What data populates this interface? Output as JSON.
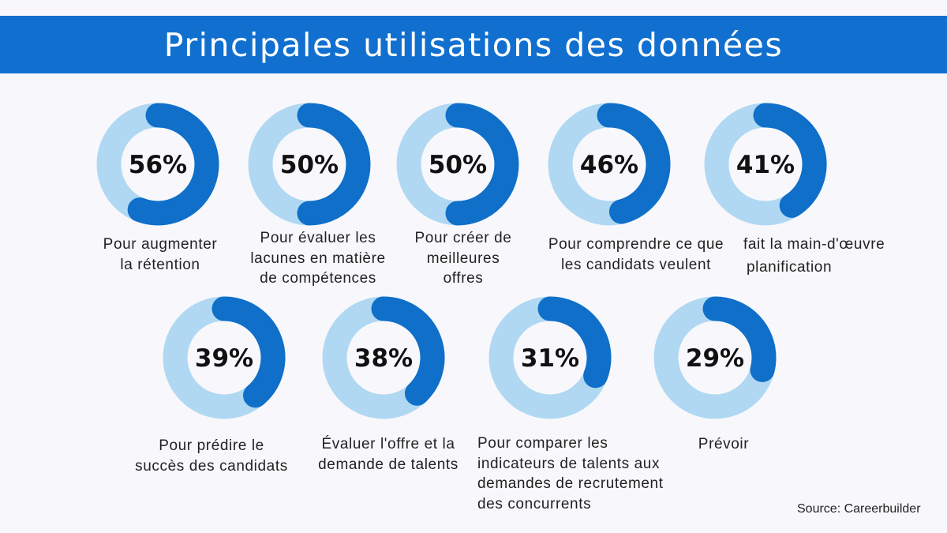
{
  "title": "Principales utilisations des données",
  "source": "Source: Careerbuilder",
  "colors": {
    "header": "#1170cf",
    "arc": "#0f6fc9",
    "track": "#b0d8f2"
  },
  "chart_data": {
    "type": "donut",
    "title": "Principales utilisations des données",
    "unit": "%",
    "items": [
      {
        "value": 56,
        "label_text": "56%",
        "lines": [
          "Pour augmenter",
          "la rétention"
        ]
      },
      {
        "value": 50,
        "label_text": "50%",
        "lines": [
          "Pour évaluer les",
          "lacunes en matière",
          "de compétences"
        ]
      },
      {
        "value": 50,
        "label_text": "50%",
        "lines": [
          "Pour créer de",
          "meilleures",
          "offres"
        ]
      },
      {
        "value": 46,
        "label_text": "46%",
        "lines": [
          "Pour comprendre ce que",
          "les candidats veulent"
        ]
      },
      {
        "value": 41,
        "label_text": "41%",
        "lines": [
          "fait la main-d'œuvre",
          "planification"
        ]
      },
      {
        "value": 39,
        "label_text": "39%",
        "lines": [
          "Pour prédire le",
          "succès des candidats"
        ]
      },
      {
        "value": 38,
        "label_text": "38%",
        "lines": [
          "Évaluer l'offre et la",
          "demande de talents"
        ]
      },
      {
        "value": 31,
        "label_text": "31%",
        "lines": [
          "Pour comparer les",
          "indicateurs de talents aux",
          "demandes de recrutement",
          "des concurrents"
        ]
      },
      {
        "value": 29,
        "label_text": "29%",
        "lines": [
          "Prévoir"
        ]
      }
    ]
  }
}
